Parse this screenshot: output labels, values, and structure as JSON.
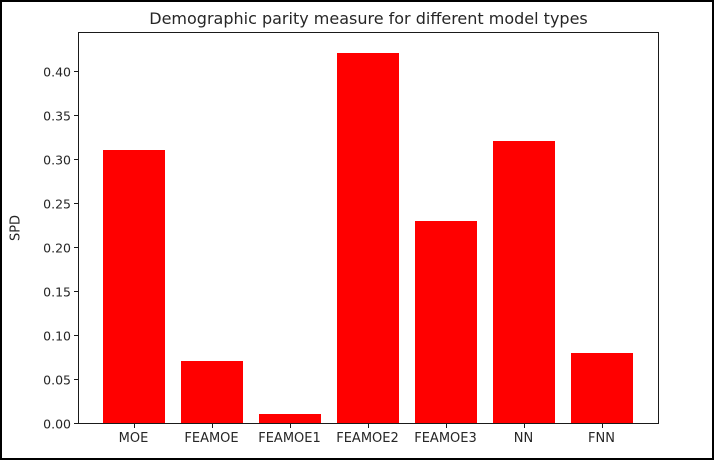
{
  "figure": {
    "title": "Demographic parity measure for different model types",
    "ylabel": "SPD"
  },
  "chart_data": {
    "type": "bar",
    "title": "Demographic parity measure for different model types",
    "xlabel": "",
    "ylabel": "SPD",
    "categories": [
      "MOE",
      "FEAMOE",
      "FEAMOE1",
      "FEAMOE2",
      "FEAMOE3",
      "NN",
      "FNN"
    ],
    "values": [
      0.31,
      0.07,
      0.01,
      0.42,
      0.23,
      0.32,
      0.08
    ],
    "yticks": [
      0.0,
      0.05,
      0.1,
      0.15,
      0.2,
      0.25,
      0.3,
      0.35,
      0.4
    ],
    "ylim": [
      0,
      0.4455
    ],
    "bar_color": "#ff0000",
    "grid": false,
    "legend_position": "none",
    "plot_background": "#ffffff",
    "frame_color": "#000000"
  }
}
